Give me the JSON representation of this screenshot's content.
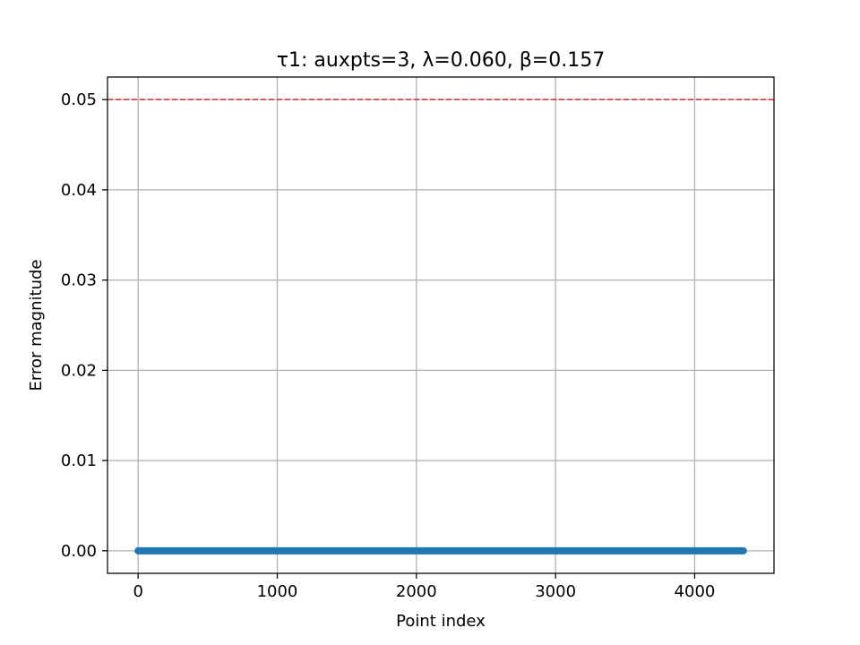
{
  "chart_data": {
    "type": "scatter",
    "title": "τ1: auxpts=3, λ=0.060, β=0.157",
    "xlabel": "Point index",
    "ylabel": "Error magnitude",
    "xlim": [
      -220,
      4570
    ],
    "ylim": [
      -0.0025,
      0.0525
    ],
    "xticks": [
      0,
      1000,
      2000,
      3000,
      4000
    ],
    "xtick_labels": [
      "0",
      "1000",
      "2000",
      "3000",
      "4000"
    ],
    "yticks": [
      0.0,
      0.01,
      0.02,
      0.03,
      0.04,
      0.05
    ],
    "ytick_labels": [
      "0.00",
      "0.01",
      "0.02",
      "0.03",
      "0.04",
      "0.05"
    ],
    "grid": true,
    "series": [
      {
        "x_start": 0,
        "x_end": 4350,
        "y_value": 0.0,
        "color": "#1f77b4"
      }
    ],
    "reference_line": {
      "y": 0.05,
      "color": "#d62728",
      "style": "dashed"
    }
  }
}
